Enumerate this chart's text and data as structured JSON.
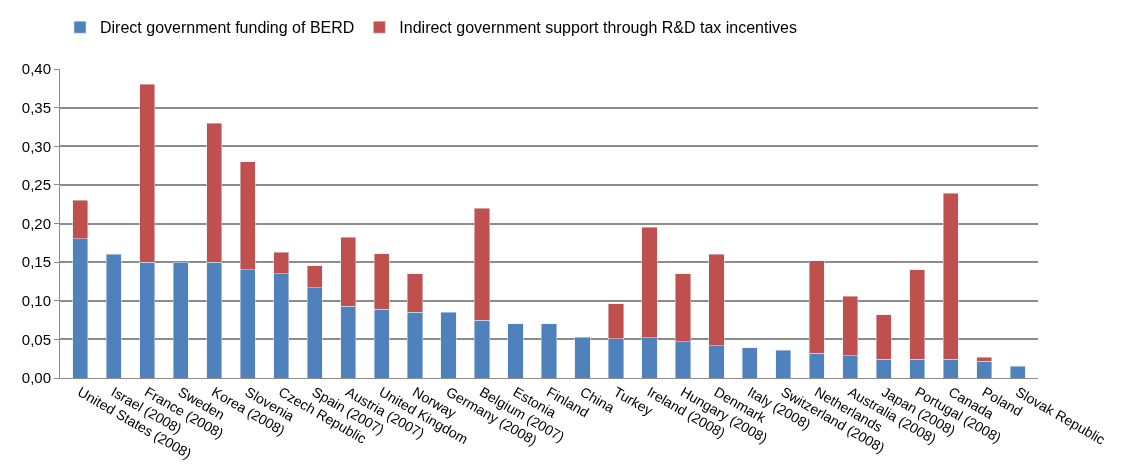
{
  "chart_data": {
    "type": "bar",
    "stacked": true,
    "categories": [
      "United States (2008)",
      "Israel (2008)",
      "France (2008)",
      "Sweden",
      "Korea (2008)",
      "Slovenia",
      "Czech Republic",
      "Spain (2007)",
      "Austria (2007)",
      "United Kingdom",
      "Norway",
      "Germany (2008)",
      "Belgium (2007)",
      "Estonia",
      "Finland",
      "China",
      "Turkey",
      "Ireland (2008)",
      "Hungary (2008)",
      "Denmark",
      "Italy (2008)",
      "Switzerland (2008)",
      "Netherlands",
      "Australia (2008)",
      "Japan (2008)",
      "Portugal (2008)",
      "Canada",
      "Poland",
      "Slovak Republic"
    ],
    "series": [
      {
        "name": "Direct government funding of BERD",
        "color": "#4f81bd",
        "values": [
          0.18,
          0.16,
          0.15,
          0.15,
          0.15,
          0.14,
          0.135,
          0.117,
          0.093,
          0.089,
          0.085,
          0.085,
          0.075,
          0.07,
          0.07,
          0.053,
          0.051,
          0.052,
          0.047,
          0.042,
          0.039,
          0.036,
          0.032,
          0.029,
          0.024,
          0.024,
          0.024,
          0.022,
          0.015
        ]
      },
      {
        "name": "Indirect government support through R&D tax incentives",
        "color": "#c0504d",
        "values": [
          0.05,
          null,
          0.23,
          null,
          0.18,
          0.14,
          0.028,
          0.028,
          0.089,
          0.072,
          0.05,
          null,
          0.145,
          null,
          null,
          null,
          0.045,
          0.143,
          0.088,
          0.118,
          null,
          null,
          0.12,
          0.077,
          0.058,
          0.116,
          0.215,
          0.005,
          null
        ]
      }
    ],
    "ylim": [
      0,
      0.4
    ],
    "yticks": [
      {
        "value": 0,
        "label": "0,00"
      },
      {
        "value": 0.05,
        "label": "0,05"
      },
      {
        "value": 0.1,
        "label": "0,10"
      },
      {
        "value": 0.15,
        "label": "0,15"
      },
      {
        "value": 0.2,
        "label": "0,20"
      },
      {
        "value": 0.25,
        "label": "0,25"
      },
      {
        "value": 0.3,
        "label": "0,30"
      },
      {
        "value": 0.35,
        "label": "0,35"
      },
      {
        "value": 0.4,
        "label": "0,40"
      }
    ],
    "grid": "y",
    "legend": "top"
  }
}
